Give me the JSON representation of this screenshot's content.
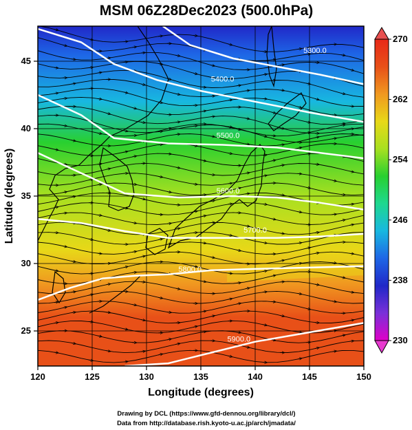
{
  "title": "MSM 06Z28Dec2023 (500.0hPa)",
  "credits": [
    "Drawing by DCL (https://www.gfd-dennou.org/library/dcl/)",
    "Data from http://database.rish.kyoto-u.ac.jp/arch/jmadata/"
  ],
  "chart_data": {
    "type": "heatmap",
    "title": "MSM 06Z28Dec2023 (500.0hPa)",
    "xlabel": "Longitude (degrees)",
    "ylabel": "Latitude  (degrees)",
    "xlim": [
      120,
      150
    ],
    "ylim": [
      22.4,
      47.6
    ],
    "x_ticks": [
      "120",
      "125",
      "130",
      "135",
      "140",
      "145",
      "150"
    ],
    "y_ticks": [
      "25",
      "30",
      "35",
      "40",
      "45"
    ],
    "grid": true,
    "colorbar": {
      "range": [
        230,
        270
      ],
      "ticks": [
        "230",
        "238",
        "246",
        "254",
        "262",
        "270"
      ],
      "colors": [
        "#e000c8",
        "#7a30d8",
        "#2028c8",
        "#1e66e6",
        "#18b8e0",
        "#1ed890",
        "#28d030",
        "#a8e020",
        "#e8d818",
        "#f09820",
        "#e85018",
        "#e82818"
      ]
    },
    "temperature_field_stops": [
      {
        "lat": 47.6,
        "value": 238
      },
      {
        "lat": 45.5,
        "value": 240
      },
      {
        "lat": 42,
        "value": 246
      },
      {
        "lat": 39,
        "value": 250
      },
      {
        "lat": 35,
        "value": 254
      },
      {
        "lat": 31,
        "value": 258
      },
      {
        "lat": 28.5,
        "value": 262
      },
      {
        "lat": 26,
        "value": 265
      },
      {
        "lat": 22.4,
        "value": 268
      }
    ],
    "contours": [
      {
        "label": "5300.0",
        "points": [
          [
            131.5,
            47.6
          ],
          [
            134,
            46.2
          ],
          [
            138,
            45.2
          ],
          [
            142,
            44.6
          ],
          [
            146,
            44.0
          ],
          [
            150,
            43.3
          ]
        ],
        "label_at": [
          145.5,
          45.6
        ]
      },
      {
        "label": "5400.0",
        "points": [
          [
            120,
            47.4
          ],
          [
            124,
            46.4
          ],
          [
            127,
            44.8
          ],
          [
            131,
            43.6
          ],
          [
            135,
            42.8
          ],
          [
            140,
            42.0
          ],
          [
            145,
            41.2
          ],
          [
            150,
            40.5
          ]
        ],
        "label_at": [
          137,
          43.5
        ]
      },
      {
        "label": "5500.0",
        "points": [
          [
            120,
            42.5
          ],
          [
            124,
            41.0
          ],
          [
            127,
            39.3
          ],
          [
            132,
            38.9
          ],
          [
            137,
            38.8
          ],
          [
            142,
            38.6
          ],
          [
            146,
            38.2
          ],
          [
            150,
            37.8
          ]
        ],
        "label_at": [
          137.5,
          39.3
        ]
      },
      {
        "label": "5600.0",
        "points": [
          [
            120,
            38.2
          ],
          [
            124,
            36.7
          ],
          [
            128,
            35.2
          ],
          [
            133,
            34.9
          ],
          [
            138,
            35.0
          ],
          [
            142,
            34.9
          ],
          [
            146,
            34.5
          ],
          [
            150,
            34.0
          ]
        ],
        "label_at": [
          137.5,
          35.2
        ]
      },
      {
        "label": "5700.0",
        "points": [
          [
            120,
            33.3
          ],
          [
            124,
            33.0
          ],
          [
            128,
            32.4
          ],
          [
            132,
            31.9
          ],
          [
            137,
            31.9
          ],
          [
            142,
            31.9
          ],
          [
            146,
            32.0
          ],
          [
            150,
            32.2
          ]
        ],
        "label_at": [
          140,
          32.3
        ]
      },
      {
        "label": "5800.0",
        "points": [
          [
            120,
            27.3
          ],
          [
            123,
            28.2
          ],
          [
            126,
            28.9
          ],
          [
            129,
            29.1
          ],
          [
            132,
            29.2
          ],
          [
            136,
            29.5
          ],
          [
            140,
            29.6
          ],
          [
            145,
            29.7
          ],
          [
            150,
            29.8
          ]
        ],
        "label_at": [
          134,
          29.4
        ]
      },
      {
        "label": "5900.0",
        "points": [
          [
            128,
            22.4
          ],
          [
            132,
            22.6
          ],
          [
            136,
            23.4
          ],
          [
            140,
            24.2
          ],
          [
            145,
            24.9
          ],
          [
            150,
            25.6
          ]
        ],
        "label_at": [
          138.5,
          24.2
        ]
      }
    ],
    "wind": "streamlines, generally west to east, strongest band 28–34N"
  }
}
